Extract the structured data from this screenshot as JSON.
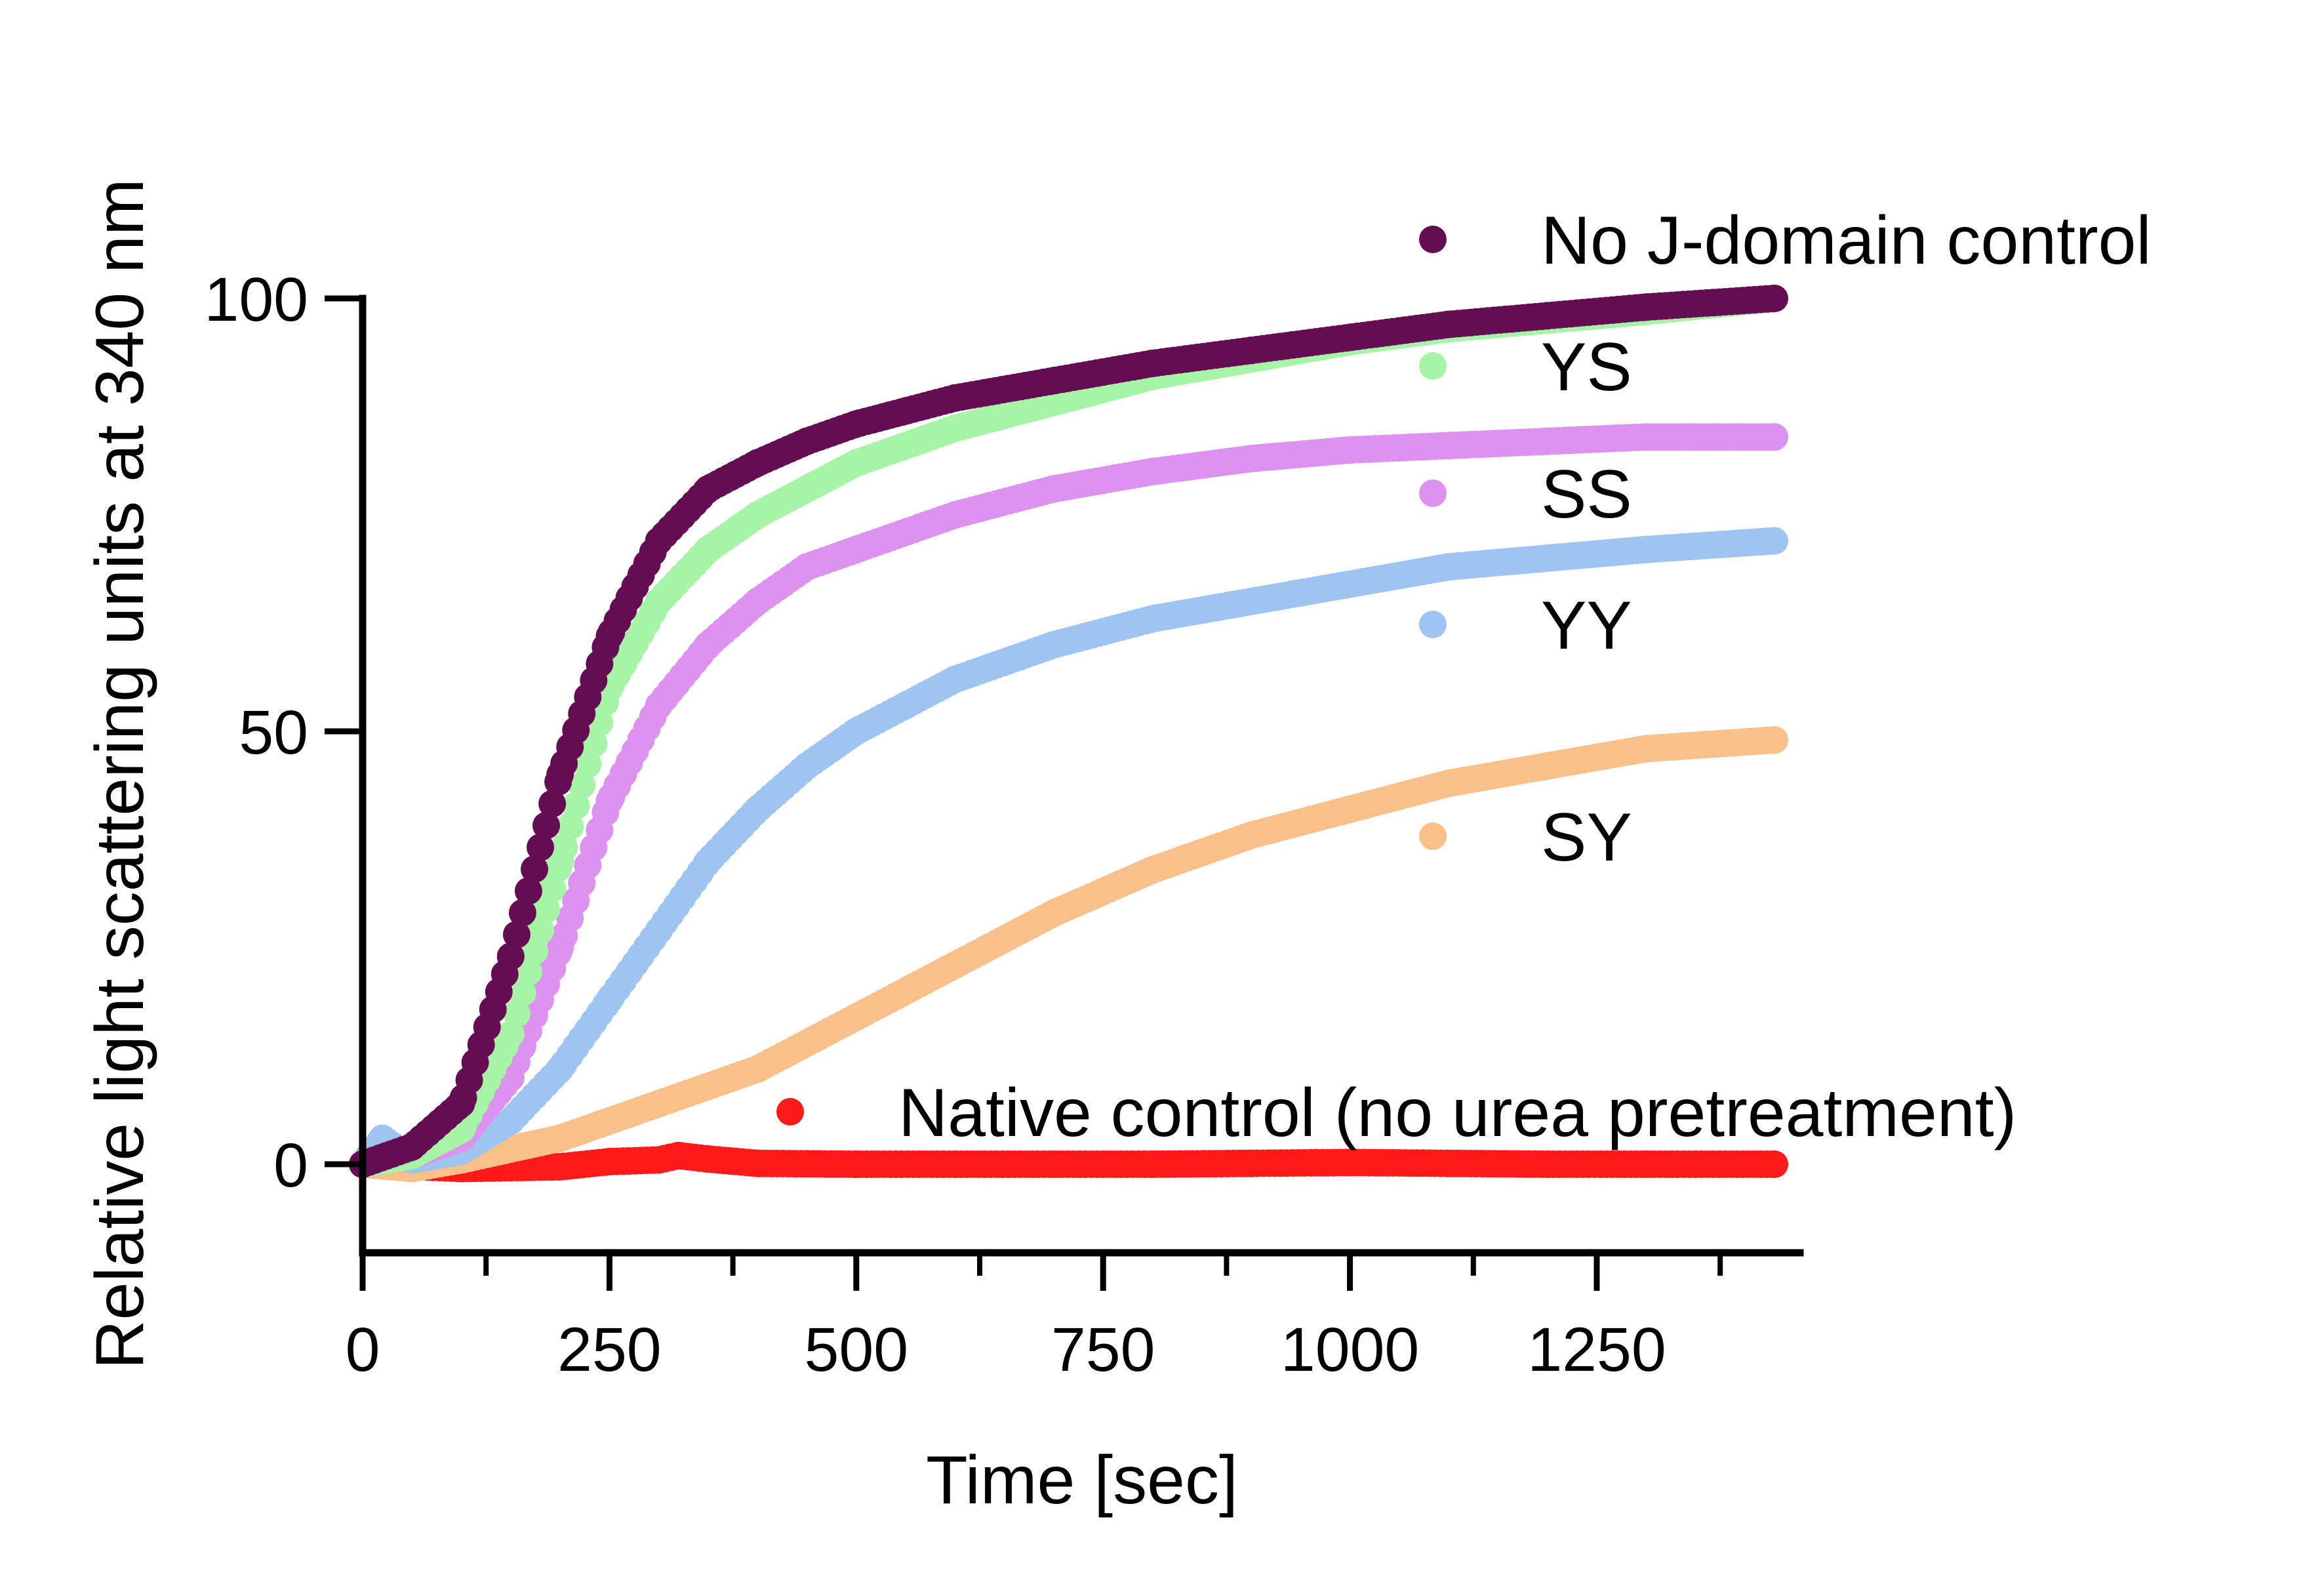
{
  "chart_data": {
    "type": "scatter",
    "title": "",
    "xlabel": "Time [sec]",
    "ylabel": "Relative light scattering units at 340 nm",
    "xlim": [
      0,
      1450
    ],
    "ylim": [
      -10,
      100
    ],
    "xticks": [
      0,
      250,
      500,
      750,
      1000,
      1250
    ],
    "xtick_labels": [
      "0",
      "250",
      "500",
      "750",
      "1000",
      "1250"
    ],
    "yticks": [
      0,
      50,
      100
    ],
    "ytick_labels": [
      "0",
      "50",
      "100"
    ],
    "grid": false,
    "legend_placement": "right, inline next to each curve",
    "series": [
      {
        "name": "Native control (no urea pretreatment)",
        "color": "#ff1a1a",
        "x": [
          0,
          100,
          200,
          250,
          300,
          320,
          350,
          400,
          500,
          600,
          700,
          800,
          900,
          1000,
          1100,
          1200,
          1300,
          1430
        ],
        "y": [
          0,
          -0.5,
          -0.3,
          0.3,
          0.5,
          1.0,
          0.6,
          0.1,
          0,
          0,
          0,
          0,
          0.1,
          0.2,
          0.1,
          0,
          0,
          0
        ]
      },
      {
        "name": "SY",
        "color": "#f9c08a",
        "x": [
          0,
          50,
          100,
          200,
          300,
          400,
          500,
          600,
          700,
          800,
          900,
          1000,
          1100,
          1200,
          1300,
          1430
        ],
        "y": [
          0,
          -0.5,
          0.5,
          3,
          7,
          11,
          17,
          23,
          29,
          34,
          38,
          41,
          44,
          46,
          48,
          49
        ]
      },
      {
        "name": "YY",
        "color": "#9ec4f2",
        "x": [
          0,
          20,
          50,
          100,
          150,
          200,
          250,
          300,
          350,
          400,
          450,
          500,
          550,
          600,
          700,
          800,
          900,
          1000,
          1100,
          1200,
          1300,
          1430
        ],
        "y": [
          0,
          3,
          0.5,
          1.5,
          5,
          11,
          19,
          27,
          35,
          41,
          46,
          50,
          53,
          56,
          60,
          63,
          65,
          67,
          69,
          70,
          71,
          72
        ]
      },
      {
        "name": "SS",
        "color": "#dd92f0",
        "x": [
          0,
          50,
          100,
          150,
          200,
          250,
          300,
          350,
          400,
          450,
          500,
          600,
          700,
          800,
          900,
          1000,
          1100,
          1200,
          1300,
          1430
        ],
        "y": [
          0,
          1,
          3,
          10,
          25,
          42,
          53,
          60,
          65,
          69,
          71,
          75,
          78,
          80,
          81.5,
          82.5,
          83,
          83.5,
          84,
          84
        ]
      },
      {
        "name": "YS",
        "color": "#a6f5a6",
        "x": [
          0,
          50,
          100,
          150,
          200,
          250,
          300,
          350,
          400,
          450,
          500,
          600,
          700,
          800,
          900,
          1000,
          1100,
          1200,
          1300,
          1430
        ],
        "y": [
          0,
          1,
          4,
          15,
          35,
          55,
          65,
          71,
          75,
          78,
          81,
          85,
          88,
          91,
          93,
          95,
          96.5,
          97.5,
          98.5,
          100
        ]
      },
      {
        "name": "No J-domain control",
        "color": "#650d52",
        "x": [
          0,
          50,
          100,
          150,
          200,
          250,
          300,
          350,
          400,
          450,
          500,
          550,
          600,
          700,
          800,
          900,
          1000,
          1100,
          1200,
          1300,
          1430
        ],
        "y": [
          0,
          2,
          7,
          24,
          45,
          61,
          72,
          78,
          81,
          83.5,
          85.5,
          87,
          88.5,
          90.5,
          92.5,
          94,
          95.5,
          97,
          98,
          99,
          100
        ]
      }
    ]
  }
}
